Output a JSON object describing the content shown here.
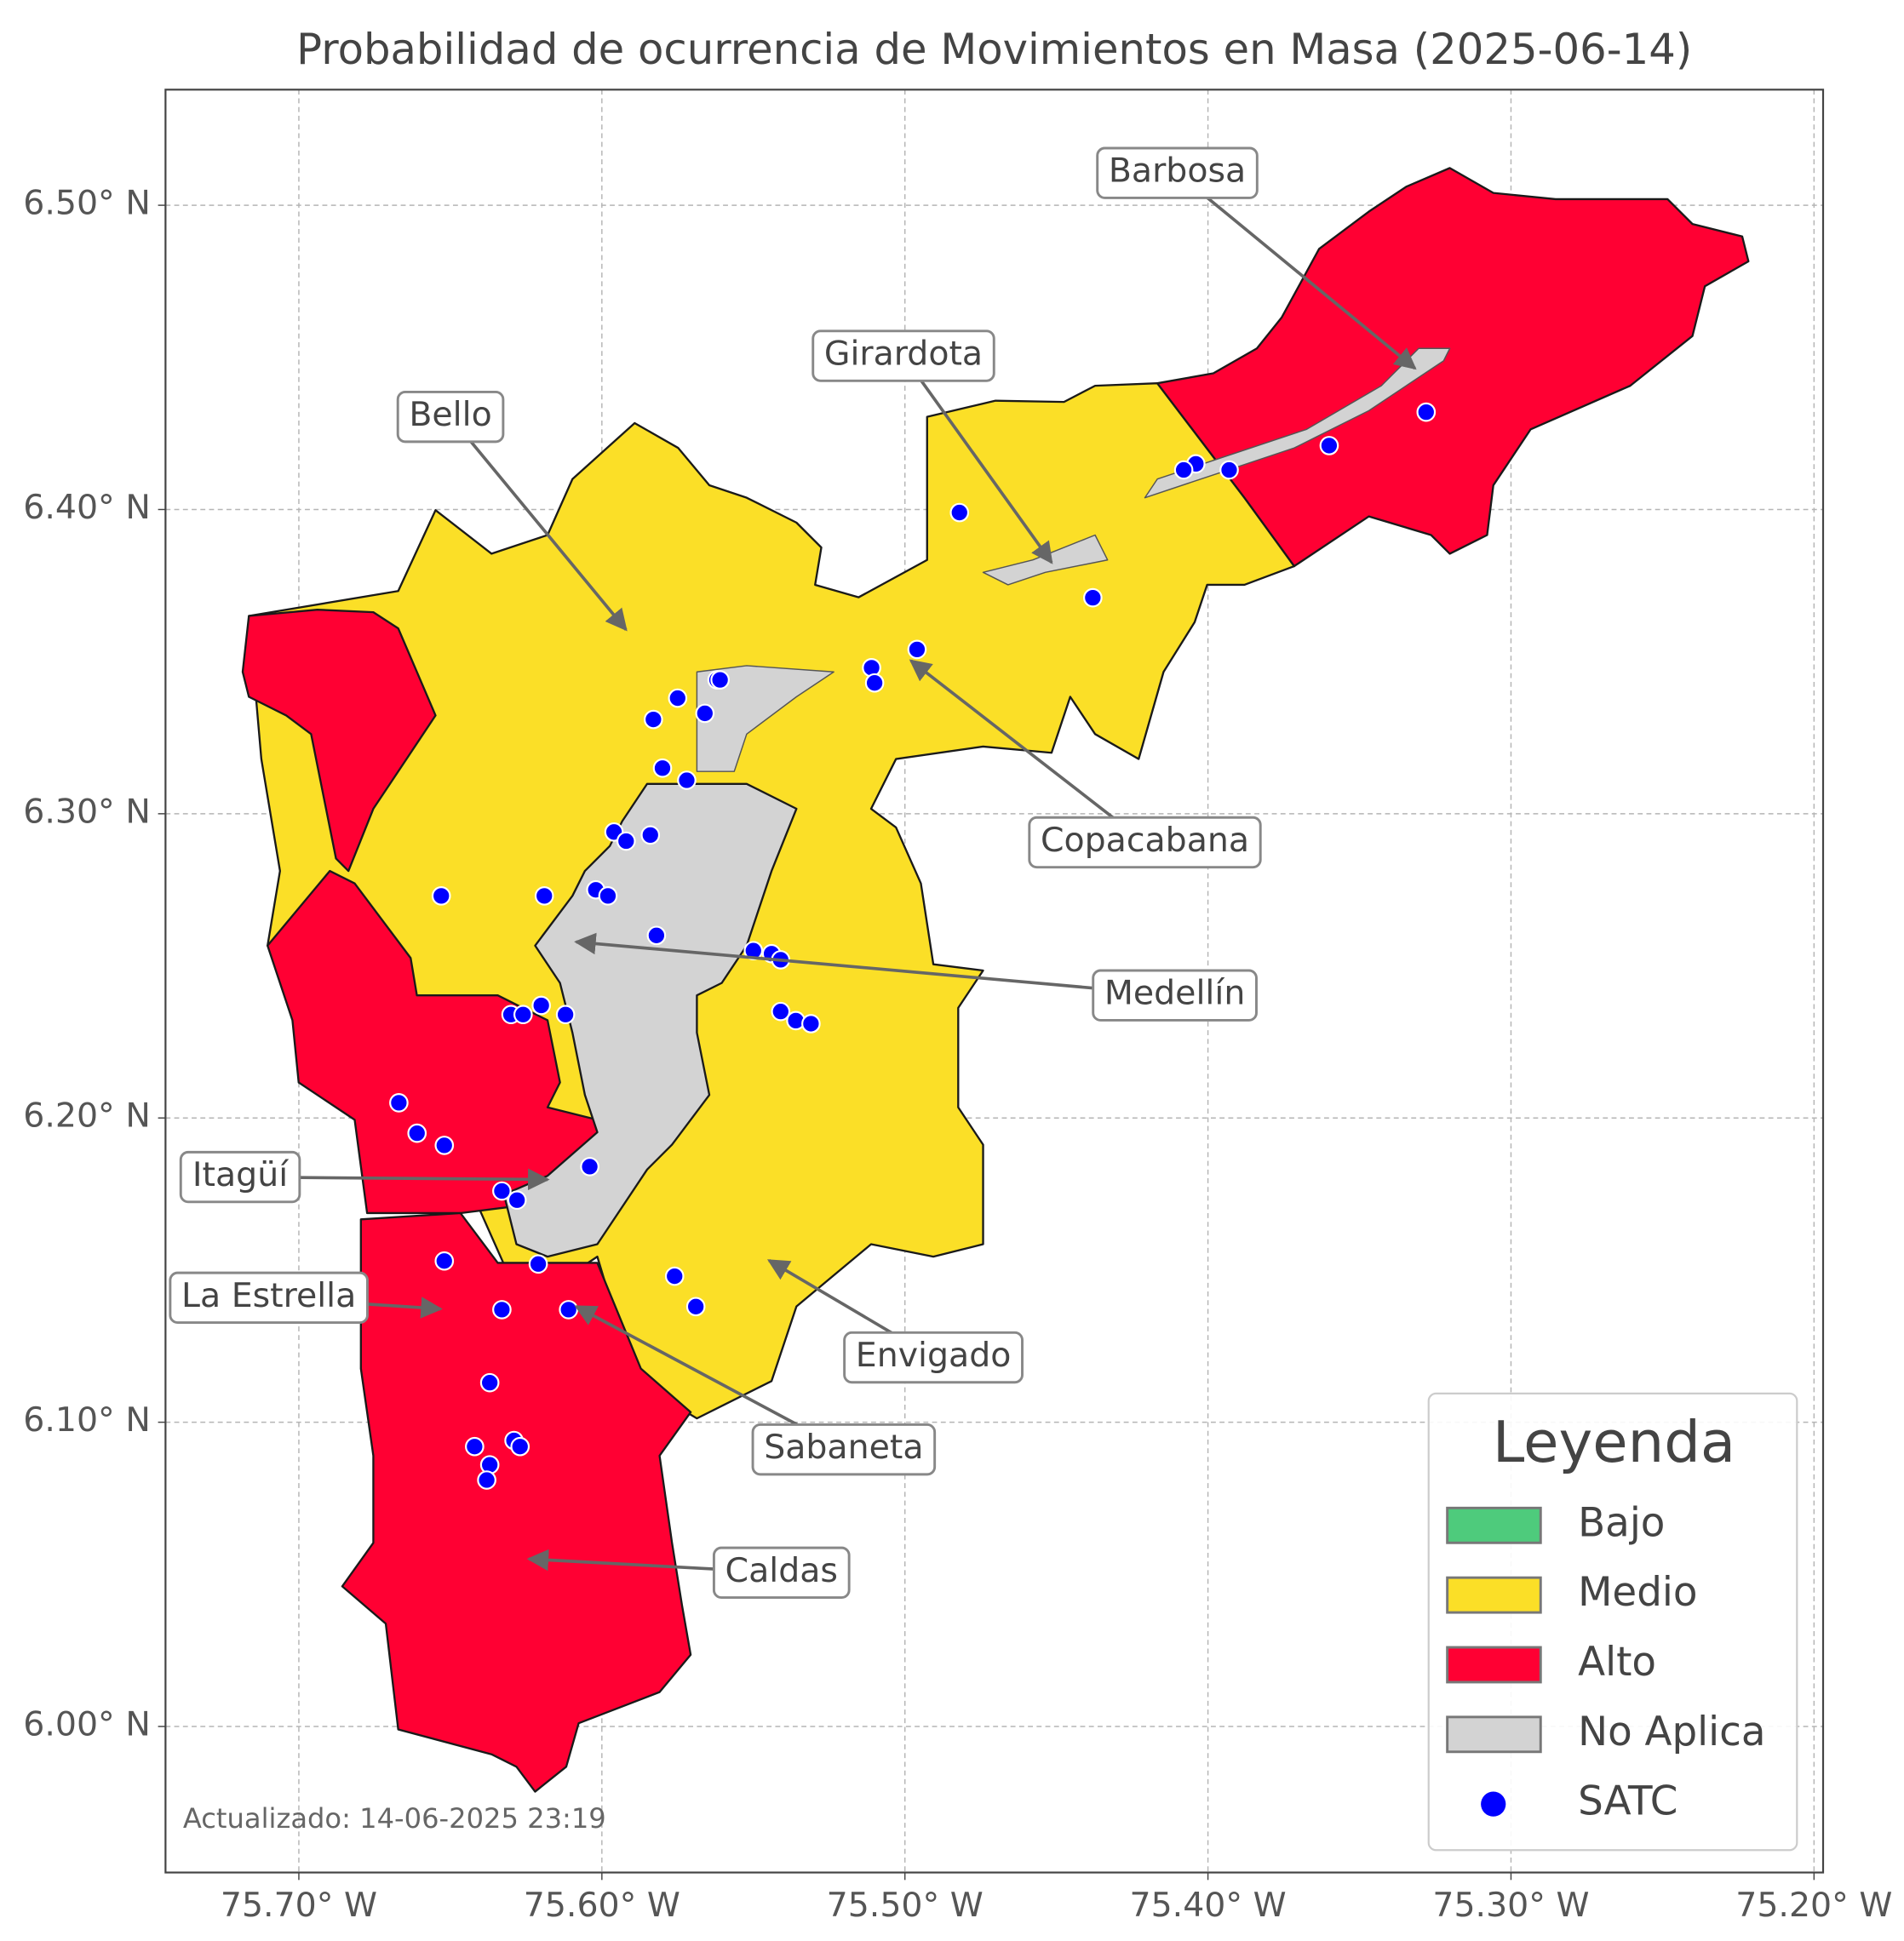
{
  "chart_data": {
    "type": "scatter",
    "title": "Probabilidad de ocurrencia de Movimientos en Masa (2025-06-14)",
    "note": "Actualizado: 14-06-2025 23:19",
    "xlim": [
      -75.744,
      -75.197
    ],
    "ylim": [
      5.952,
      6.538
    ],
    "xticks": [
      {
        "value": -75.7,
        "label": "75.70° W"
      },
      {
        "value": -75.6,
        "label": "75.60° W"
      },
      {
        "value": -75.5,
        "label": "75.50° W"
      },
      {
        "value": -75.4,
        "label": "75.40° W"
      },
      {
        "value": -75.3,
        "label": "75.30° W"
      },
      {
        "value": -75.2,
        "label": "75.20° W"
      }
    ],
    "yticks": [
      {
        "value": 6.0,
        "label": "6.00° N"
      },
      {
        "value": 6.1,
        "label": "6.10° N"
      },
      {
        "value": 6.2,
        "label": "6.20° N"
      },
      {
        "value": 6.3,
        "label": "6.30° N"
      },
      {
        "value": 6.4,
        "label": "6.40° N"
      },
      {
        "value": 6.5,
        "label": "6.50° N"
      }
    ],
    "grid": true,
    "legend_title": "Leyenda",
    "legend": "lower right",
    "risk_levels": [
      {
        "name": "Bajo",
        "color": "#4ecb7c"
      },
      {
        "name": "Medio",
        "color": "#fbdf27"
      },
      {
        "name": "Alto",
        "color": "#ff0033"
      },
      {
        "name": "No Aplica",
        "color": "#d3d3d3"
      }
    ],
    "series": [
      {
        "name": "SATC",
        "color": "#0000ff",
        "x": [
          -75.328,
          -75.36,
          -75.393,
          -75.404,
          -75.408,
          -75.482,
          -75.438,
          -75.496,
          -75.511,
          -75.51,
          -75.562,
          -75.561,
          -75.575,
          -75.566,
          -75.583,
          -75.58,
          -75.572,
          -75.596,
          -75.592,
          -75.584,
          -75.653,
          -75.619,
          -75.602,
          -75.598,
          -75.582,
          -75.55,
          -75.544,
          -75.541,
          -75.541,
          -75.536,
          -75.531,
          -75.63,
          -75.626,
          -75.62,
          -75.612,
          -75.667,
          -75.661,
          -75.652,
          -75.604,
          -75.633,
          -75.628,
          -75.652,
          -75.621,
          -75.633,
          -75.611,
          -75.576,
          -75.569,
          -75.637,
          -75.642,
          -75.629,
          -75.627,
          -75.637,
          -75.638
        ],
        "y": [
          6.432,
          6.421,
          6.413,
          6.415,
          6.413,
          6.399,
          6.371,
          6.354,
          6.348,
          6.343,
          6.344,
          6.344,
          6.338,
          6.333,
          6.331,
          6.315,
          6.311,
          6.294,
          6.291,
          6.293,
          6.273,
          6.273,
          6.275,
          6.273,
          6.26,
          6.255,
          6.254,
          6.252,
          6.235,
          6.232,
          6.231,
          6.234,
          6.234,
          6.237,
          6.234,
          6.205,
          6.195,
          6.191,
          6.184,
          6.176,
          6.173,
          6.153,
          6.152,
          6.137,
          6.137,
          6.148,
          6.138,
          6.113,
          6.092,
          6.094,
          6.092,
          6.086,
          6.081
        ]
      }
    ],
    "annotations": [
      {
        "text": "Barbosa"
      },
      {
        "text": "Girardota"
      },
      {
        "text": "Bello"
      },
      {
        "text": "Copacabana"
      },
      {
        "text": "Medellín"
      },
      {
        "text": "Itagüí"
      },
      {
        "text": "La Estrella"
      },
      {
        "text": "Envigado"
      },
      {
        "text": "Sabaneta"
      },
      {
        "text": "Caldas"
      }
    ]
  }
}
